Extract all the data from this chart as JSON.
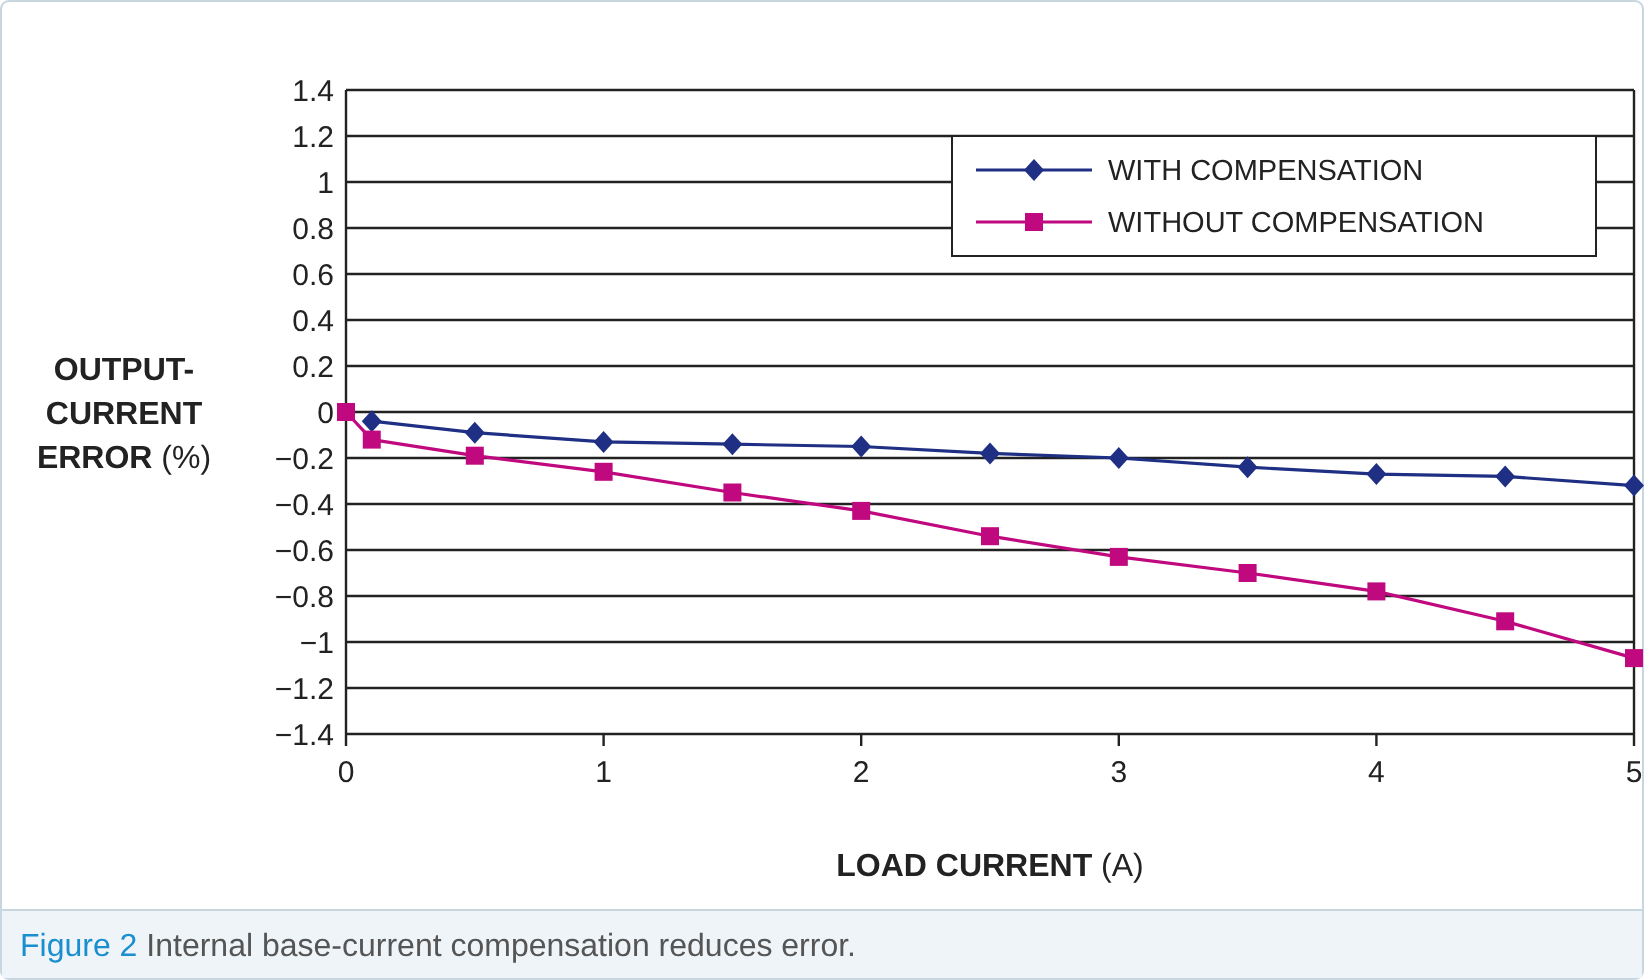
{
  "chart_data": {
    "type": "line",
    "xlabel": "LOAD CURRENT (A)",
    "ylabel": "OUTPUT-CURRENT ERROR (%)",
    "annotations": [
      "Figure 2 Internal base-current compensation reduces error."
    ],
    "x": [
      0,
      0.1,
      0.5,
      1,
      1.5,
      2,
      2.5,
      3,
      3.5,
      4,
      4.5,
      5
    ],
    "series": [
      {
        "name": "WITH COMPENSATION",
        "color": "#1f2f84",
        "marker": "diamond",
        "values": [
          null,
          -0.04,
          -0.09,
          -0.13,
          -0.14,
          -0.15,
          -0.18,
          -0.2,
          -0.24,
          -0.27,
          -0.28,
          -0.32
        ]
      },
      {
        "name": "WITHOUT COMPENSATION",
        "color": "#c0087f",
        "marker": "square",
        "values": [
          0,
          -0.12,
          -0.19,
          -0.26,
          -0.35,
          -0.43,
          -0.54,
          -0.63,
          -0.7,
          -0.78,
          -0.91,
          -1.07
        ]
      }
    ],
    "xlim": [
      0,
      5
    ],
    "xticks": [
      0,
      1,
      2,
      3,
      4,
      5
    ],
    "ylim": [
      -1.4,
      1.4
    ],
    "yticks": [
      {
        "value": -1.4,
        "label": "−1.4"
      },
      {
        "value": -1.2,
        "label": "−1.2"
      },
      {
        "value": -1,
        "label": "−1"
      },
      {
        "value": -0.8,
        "label": "−0.8"
      },
      {
        "value": -0.6,
        "label": "−0.6"
      },
      {
        "value": -0.4,
        "label": "−0.4"
      },
      {
        "value": -0.2,
        "label": "−0.2"
      },
      0,
      0.2,
      0.4,
      0.6,
      0.8,
      1,
      1.2,
      1.4
    ],
    "grid": "y",
    "legend": "top right"
  }
}
